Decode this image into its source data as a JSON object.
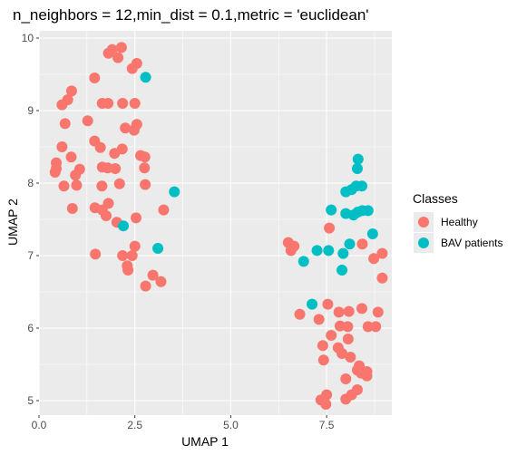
{
  "chart_data": {
    "type": "scatter",
    "title": "n_neighbors = 12,min_dist = 0.1,metric = 'euclidean'",
    "xlabel": "UMAP 1",
    "ylabel": "UMAP 2",
    "xlim": [
      0,
      9.2
    ],
    "ylim": [
      4.8,
      10.1
    ],
    "x_ticks": [
      0.0,
      2.5,
      5.0,
      7.5
    ],
    "x_tick_labels": [
      "0.0",
      "2.5",
      "5.0",
      "7.5"
    ],
    "y_ticks": [
      5,
      6,
      7,
      8,
      9,
      10
    ],
    "y_tick_labels": [
      "5",
      "6",
      "7",
      "8",
      "9",
      "10"
    ],
    "grid": true,
    "legend_title": "Classes",
    "legend_position": "right",
    "colors": {
      "Healthy": "#F8766D",
      "BAV patients": "#00BFC4",
      "panel_background": "#EBEBEB",
      "grid": "#FFFFFF"
    },
    "series": [
      {
        "name": "Healthy",
        "points": [
          [
            2.15,
            9.87
          ],
          [
            1.91,
            9.84
          ],
          [
            1.81,
            9.79
          ],
          [
            2.43,
            9.58
          ],
          [
            2.06,
            9.73
          ],
          [
            2.55,
            9.65
          ],
          [
            0.85,
            9.27
          ],
          [
            1.45,
            9.45
          ],
          [
            0.75,
            9.15
          ],
          [
            0.6,
            9.08
          ],
          [
            1.65,
            9.1
          ],
          [
            1.8,
            9.1
          ],
          [
            2.18,
            9.1
          ],
          [
            2.5,
            9.1
          ],
          [
            0.68,
            8.82
          ],
          [
            1.27,
            8.86
          ],
          [
            2.25,
            8.76
          ],
          [
            2.55,
            8.81
          ],
          [
            2.48,
            8.73
          ],
          [
            2.65,
            8.38
          ],
          [
            1.45,
            8.58
          ],
          [
            0.6,
            8.5
          ],
          [
            1.6,
            8.49
          ],
          [
            2.17,
            8.47
          ],
          [
            1.97,
            8.41
          ],
          [
            0.84,
            8.36
          ],
          [
            2.76,
            8.36
          ],
          [
            0.45,
            8.28
          ],
          [
            0.45,
            8.2
          ],
          [
            1.06,
            8.19
          ],
          [
            1.99,
            8.2
          ],
          [
            1.65,
            8.22
          ],
          [
            1.79,
            8.21
          ],
          [
            2.75,
            8.21
          ],
          [
            0.42,
            8.15
          ],
          [
            0.95,
            8.11
          ],
          [
            0.65,
            7.96
          ],
          [
            0.98,
            7.97
          ],
          [
            1.64,
            7.96
          ],
          [
            2.1,
            7.99
          ],
          [
            2.77,
            7.98
          ],
          [
            1.81,
            7.72
          ],
          [
            1.46,
            7.66
          ],
          [
            1.65,
            7.63
          ],
          [
            1.75,
            7.55
          ],
          [
            0.87,
            7.65
          ],
          [
            2.53,
            7.52
          ],
          [
            2.03,
            7.46
          ],
          [
            3.25,
            7.63
          ],
          [
            1.47,
            7.02
          ],
          [
            2.5,
            7.13
          ],
          [
            2.18,
            7.0
          ],
          [
            2.43,
            7.0
          ],
          [
            2.3,
            6.86
          ],
          [
            2.32,
            6.8
          ],
          [
            2.97,
            6.73
          ],
          [
            3.18,
            6.64
          ],
          [
            2.78,
            6.58
          ],
          [
            6.5,
            7.18
          ],
          [
            6.65,
            7.13
          ],
          [
            6.57,
            7.07
          ],
          [
            7.57,
            7.38
          ],
          [
            8.95,
            7.03
          ],
          [
            8.43,
            7.16
          ],
          [
            8.73,
            6.96
          ],
          [
            8.95,
            6.69
          ],
          [
            6.8,
            6.19
          ],
          [
            7.53,
            6.33
          ],
          [
            7.82,
            6.22
          ],
          [
            8.08,
            6.23
          ],
          [
            8.42,
            6.27
          ],
          [
            8.84,
            6.22
          ],
          [
            7.3,
            6.12
          ],
          [
            8.05,
            6.02
          ],
          [
            7.85,
            6.03
          ],
          [
            8.06,
            5.85
          ],
          [
            8.58,
            6.02
          ],
          [
            8.78,
            6.02
          ],
          [
            7.8,
            5.73
          ],
          [
            7.4,
            5.76
          ],
          [
            7.9,
            5.65
          ],
          [
            8.12,
            5.6
          ],
          [
            7.62,
            5.9
          ],
          [
            8.35,
            5.48
          ],
          [
            8.3,
            5.42
          ],
          [
            8.4,
            5.38
          ],
          [
            8.55,
            5.4
          ],
          [
            8.55,
            5.34
          ],
          [
            7.42,
            5.56
          ],
          [
            8.0,
            5.3
          ],
          [
            8.3,
            5.15
          ],
          [
            7.5,
            5.08
          ],
          [
            8.15,
            5.08
          ],
          [
            7.48,
            4.95
          ],
          [
            7.35,
            5.01
          ],
          [
            8.0,
            5.02
          ]
        ]
      },
      {
        "name": "BAV patients",
        "points": [
          [
            2.78,
            9.46
          ],
          [
            3.53,
            7.88
          ],
          [
            2.2,
            7.41
          ],
          [
            3.1,
            7.1
          ],
          [
            7.12,
            6.33
          ],
          [
            6.9,
            6.92
          ],
          [
            7.25,
            7.07
          ],
          [
            7.55,
            7.07
          ],
          [
            7.9,
            6.8
          ],
          [
            7.93,
            7.03
          ],
          [
            8.1,
            7.16
          ],
          [
            8.2,
            7.56
          ],
          [
            8.31,
            7.6
          ],
          [
            8.43,
            7.62
          ],
          [
            8.0,
            7.58
          ],
          [
            7.62,
            7.63
          ],
          [
            8.7,
            7.3
          ],
          [
            8.0,
            7.88
          ],
          [
            8.27,
            7.96
          ],
          [
            8.42,
            7.96
          ],
          [
            8.15,
            7.91
          ],
          [
            8.32,
            8.33
          ],
          [
            8.3,
            8.2
          ],
          [
            8.58,
            7.62
          ]
        ]
      }
    ]
  }
}
